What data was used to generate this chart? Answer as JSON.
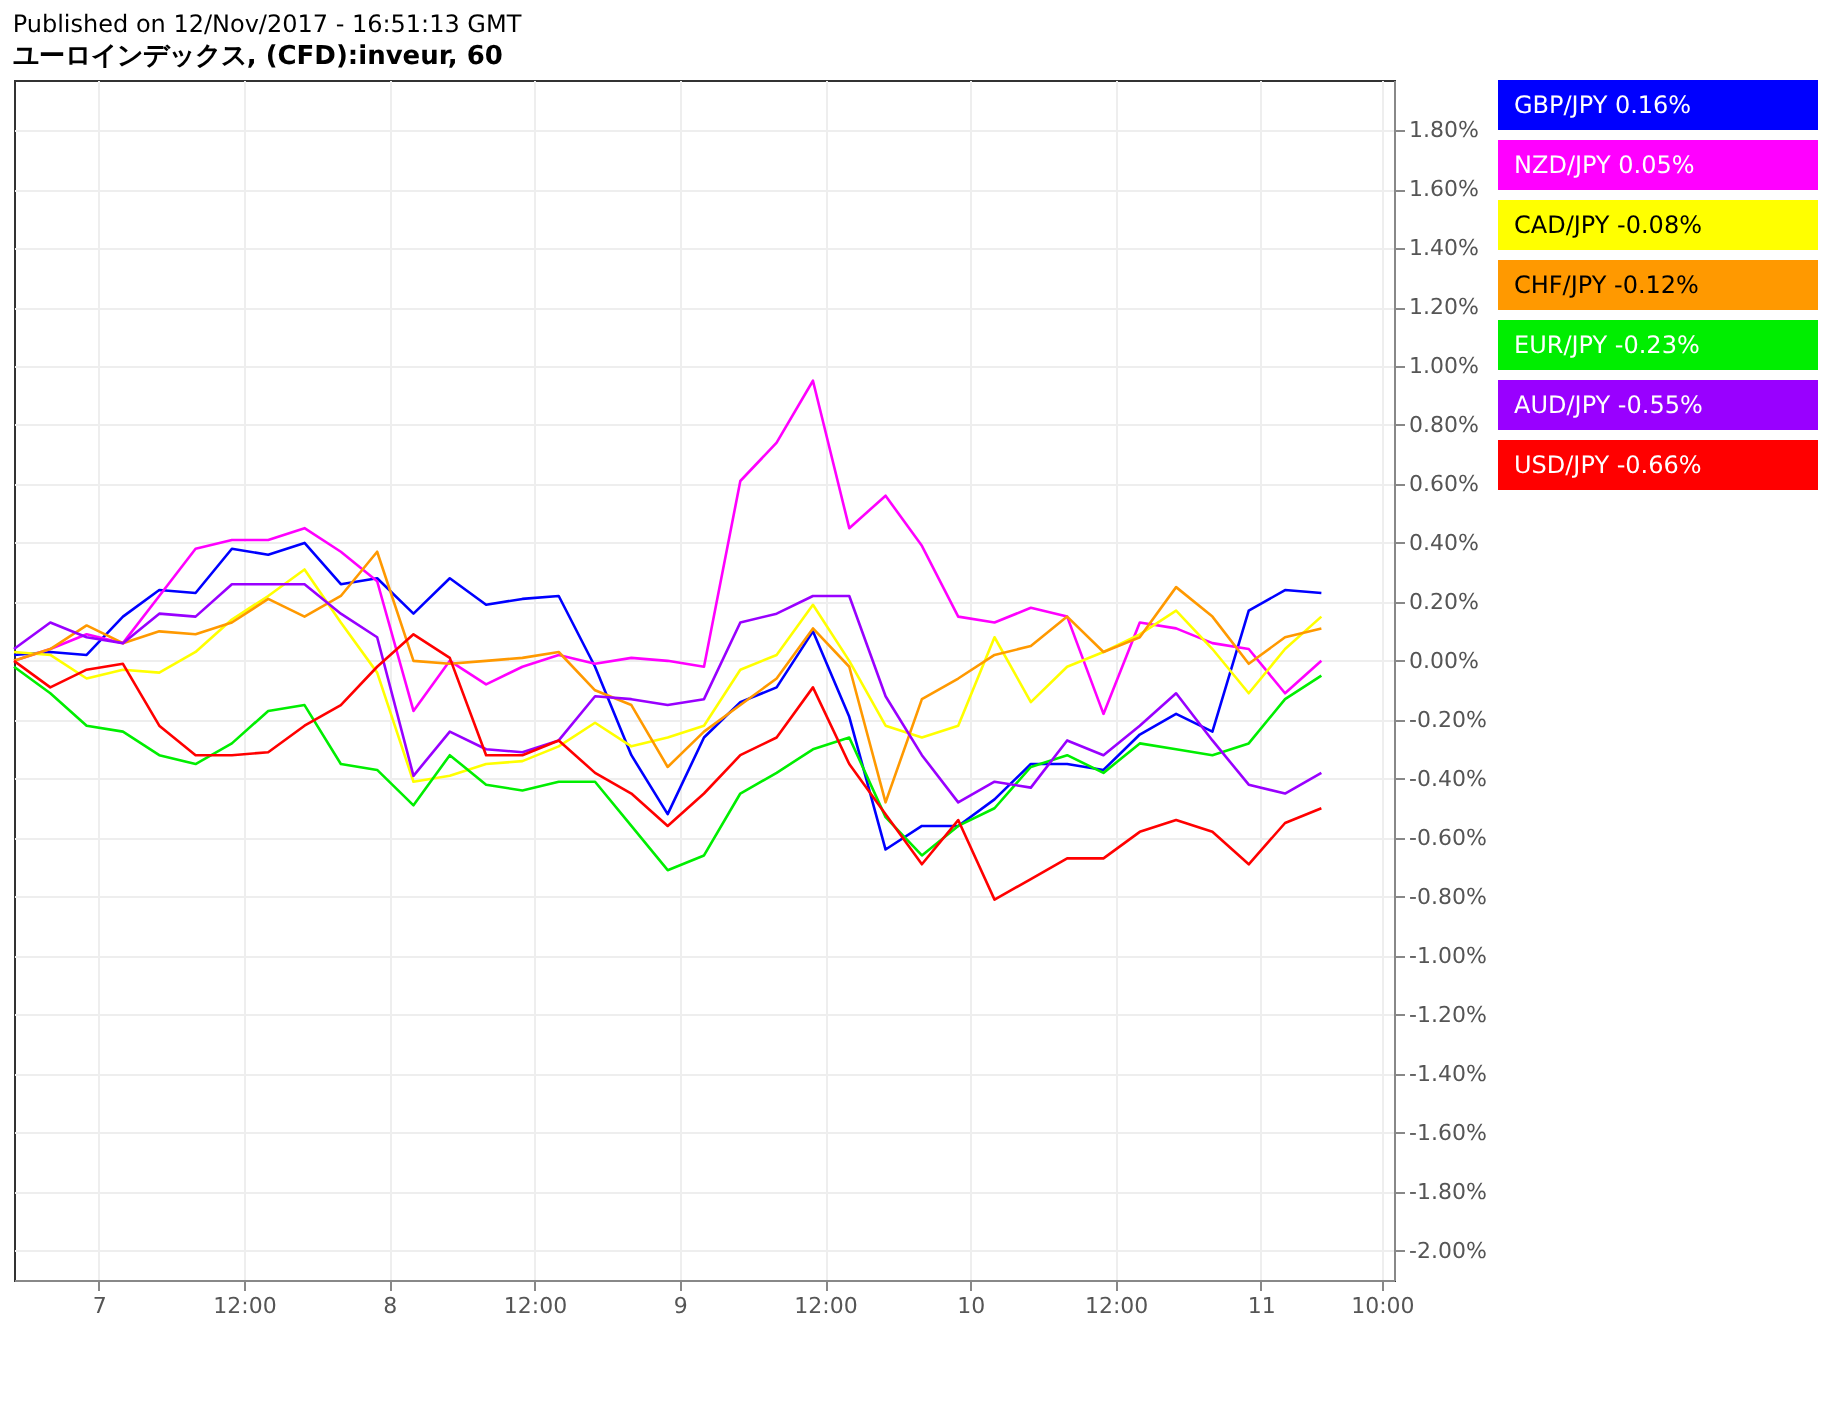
{
  "chart_data": {
    "type": "line",
    "title": "Published on 12/Nov/2017 - 16:51:13 GMT",
    "subtitle": "ユーロインデックス, (CFD):inveur, 60",
    "x": [
      "2017-11-06T17:00",
      "2017-11-06T20:00",
      "2017-11-06T23:00",
      "2017-11-07T02:00",
      "2017-11-07T05:00",
      "2017-11-07T08:00",
      "2017-11-07T11:00",
      "2017-11-07T14:00",
      "2017-11-07T17:00",
      "2017-11-07T20:00",
      "2017-11-07T23:00",
      "2017-11-08T02:00",
      "2017-11-08T05:00",
      "2017-11-08T08:00",
      "2017-11-08T11:00",
      "2017-11-08T14:00",
      "2017-11-08T17:00",
      "2017-11-08T20:00",
      "2017-11-08T23:00",
      "2017-11-09T02:00",
      "2017-11-09T05:00",
      "2017-11-09T08:00",
      "2017-11-09T11:00",
      "2017-11-09T14:00",
      "2017-11-09T17:00",
      "2017-11-09T20:00",
      "2017-11-09T23:00",
      "2017-11-10T02:00",
      "2017-11-10T05:00",
      "2017-11-10T08:00",
      "2017-11-10T11:00",
      "2017-11-10T14:00",
      "2017-11-10T17:00",
      "2017-11-10T20:00",
      "2017-11-10T23:00",
      "2017-11-11T02:00",
      "2017-11-11T05:00"
    ],
    "series": [
      {
        "name": "GBP/JPY",
        "color": "#0000ff",
        "values": [
          0.02,
          0.03,
          0.02,
          0.15,
          0.24,
          0.23,
          0.38,
          0.36,
          0.4,
          0.26,
          0.28,
          0.16,
          0.28,
          0.19,
          0.21,
          0.22,
          -0.02,
          -0.32,
          -0.52,
          -0.26,
          -0.14,
          -0.09,
          0.1,
          -0.19,
          -0.64,
          -0.56,
          -0.56,
          -0.47,
          -0.35,
          -0.35,
          -0.37,
          -0.25,
          -0.18,
          -0.24,
          0.17,
          0.24,
          0.23
        ]
      },
      {
        "name": "NZD/JPY",
        "color": "#ff00ff",
        "values": [
          0.0,
          0.04,
          0.09,
          0.06,
          0.22,
          0.38,
          0.41,
          0.41,
          0.45,
          0.37,
          0.27,
          -0.17,
          0.0,
          -0.08,
          -0.02,
          0.02,
          -0.01,
          0.01,
          0.0,
          -0.02,
          0.61,
          0.74,
          0.95,
          0.45,
          0.56,
          0.39,
          0.15,
          0.13,
          0.18,
          0.15,
          -0.18,
          0.13,
          0.11,
          0.06,
          0.04,
          -0.11,
          0.0
        ]
      },
      {
        "name": "CAD/JPY",
        "color": "#ffff00",
        "values": [
          0.03,
          0.02,
          -0.06,
          -0.03,
          -0.04,
          0.03,
          0.14,
          0.22,
          0.31,
          0.13,
          -0.04,
          -0.41,
          -0.39,
          -0.35,
          -0.34,
          -0.29,
          -0.21,
          -0.29,
          -0.26,
          -0.22,
          -0.03,
          0.02,
          0.19,
          0.0,
          -0.22,
          -0.26,
          -0.22,
          0.08,
          -0.14,
          -0.02,
          0.03,
          0.09,
          0.17,
          0.04,
          -0.11,
          0.04,
          0.15
        ]
      },
      {
        "name": "CHF/JPY",
        "color": "#ff9900",
        "values": [
          0.0,
          0.04,
          0.12,
          0.06,
          0.1,
          0.09,
          0.13,
          0.21,
          0.15,
          0.22,
          0.37,
          0.0,
          -0.01,
          0.0,
          0.01,
          0.03,
          -0.1,
          -0.15,
          -0.36,
          -0.24,
          -0.15,
          -0.06,
          0.11,
          -0.02,
          -0.48,
          -0.13,
          -0.06,
          0.02,
          0.05,
          0.15,
          0.03,
          0.08,
          0.25,
          0.15,
          -0.01,
          0.08,
          0.11
        ]
      },
      {
        "name": "EUR/JPY",
        "color": "#00ee00",
        "values": [
          -0.02,
          -0.11,
          -0.22,
          -0.24,
          -0.32,
          -0.35,
          -0.28,
          -0.17,
          -0.15,
          -0.35,
          -0.37,
          -0.49,
          -0.32,
          -0.42,
          -0.44,
          -0.41,
          -0.41,
          -0.56,
          -0.71,
          -0.66,
          -0.45,
          -0.38,
          -0.3,
          -0.26,
          -0.53,
          -0.66,
          -0.56,
          -0.5,
          -0.36,
          -0.32,
          -0.38,
          -0.28,
          -0.3,
          -0.32,
          -0.28,
          -0.13,
          -0.05
        ]
      },
      {
        "name": "AUD/JPY",
        "color": "#9900ff",
        "values": [
          0.04,
          0.13,
          0.08,
          0.06,
          0.16,
          0.15,
          0.26,
          0.26,
          0.26,
          0.16,
          0.08,
          -0.39,
          -0.24,
          -0.3,
          -0.31,
          -0.27,
          -0.12,
          -0.13,
          -0.15,
          -0.13,
          0.13,
          0.16,
          0.22,
          0.22,
          -0.12,
          -0.32,
          -0.48,
          -0.41,
          -0.43,
          -0.27,
          -0.32,
          -0.22,
          -0.11,
          -0.27,
          -0.42,
          -0.45,
          -0.38
        ]
      },
      {
        "name": "USD/JPY",
        "color": "#ff0000",
        "values": [
          0.0,
          -0.09,
          -0.03,
          -0.01,
          -0.22,
          -0.32,
          -0.32,
          -0.31,
          -0.22,
          -0.15,
          -0.02,
          0.09,
          0.01,
          -0.32,
          -0.32,
          -0.27,
          -0.38,
          -0.45,
          -0.56,
          -0.45,
          -0.32,
          -0.26,
          -0.09,
          -0.35,
          -0.52,
          -0.69,
          -0.54,
          -0.81,
          -0.74,
          -0.67,
          -0.67,
          -0.58,
          -0.54,
          -0.58,
          -0.69,
          -0.55,
          -0.5
        ]
      }
    ],
    "annotations": [
      "0.16%",
      "0.05%",
      "-0.08%",
      "-0.12%",
      "-0.23%",
      "-0.55%",
      "-0.66%"
    ],
    "xlim": [
      "2017-11-06T17:00",
      "2017-11-11T11:00"
    ],
    "xticks": [
      {
        "value": "2017-11-07",
        "label": "7"
      },
      {
        "value": "2017-11-07T12:00",
        "label": "12:00"
      },
      {
        "value": "2017-11-08",
        "label": "8"
      },
      {
        "value": "2017-11-08T12:00",
        "label": "12:00"
      },
      {
        "value": "2017-11-09",
        "label": "9"
      },
      {
        "value": "2017-11-09T12:00",
        "label": "12:00"
      },
      {
        "value": "2017-11-10",
        "label": "10"
      },
      {
        "value": "2017-11-10T12:00",
        "label": "12:00"
      },
      {
        "value": "2017-11-11",
        "label": "11"
      },
      {
        "value": "2017-11-11T10:00",
        "label": "10:00"
      }
    ],
    "ylim": [
      -2.1,
      1.97
    ],
    "yticks": [
      {
        "value": -2.0,
        "label": "-2.00%"
      },
      {
        "value": -1.8,
        "label": "-1.80%"
      },
      {
        "value": -1.6,
        "label": "-1.60%"
      },
      {
        "value": -1.4,
        "label": "-1.40%"
      },
      {
        "value": -1.2,
        "label": "-1.20%"
      },
      {
        "value": -1.0,
        "label": "-1.00%"
      },
      {
        "value": -0.8,
        "label": "-0.80%"
      },
      {
        "value": -0.6,
        "label": "-0.60%"
      },
      {
        "value": -0.4,
        "label": "-0.40%"
      },
      {
        "value": -0.2,
        "label": "-0.20%"
      },
      {
        "value": 0.0,
        "label": "0.00%"
      },
      {
        "value": 0.2,
        "label": "0.20%"
      },
      {
        "value": 0.4,
        "label": "0.40%"
      },
      {
        "value": 0.6,
        "label": "0.60%"
      },
      {
        "value": 0.8,
        "label": "0.80%"
      },
      {
        "value": 1.0,
        "label": "1.00%"
      },
      {
        "value": 1.2,
        "label": "1.20%"
      },
      {
        "value": 1.4,
        "label": "1.40%"
      },
      {
        "value": 1.6,
        "label": "1.60%"
      },
      {
        "value": 1.8,
        "label": "1.80%"
      }
    ],
    "grid": true,
    "marker": "none",
    "line_style": "solid"
  }
}
